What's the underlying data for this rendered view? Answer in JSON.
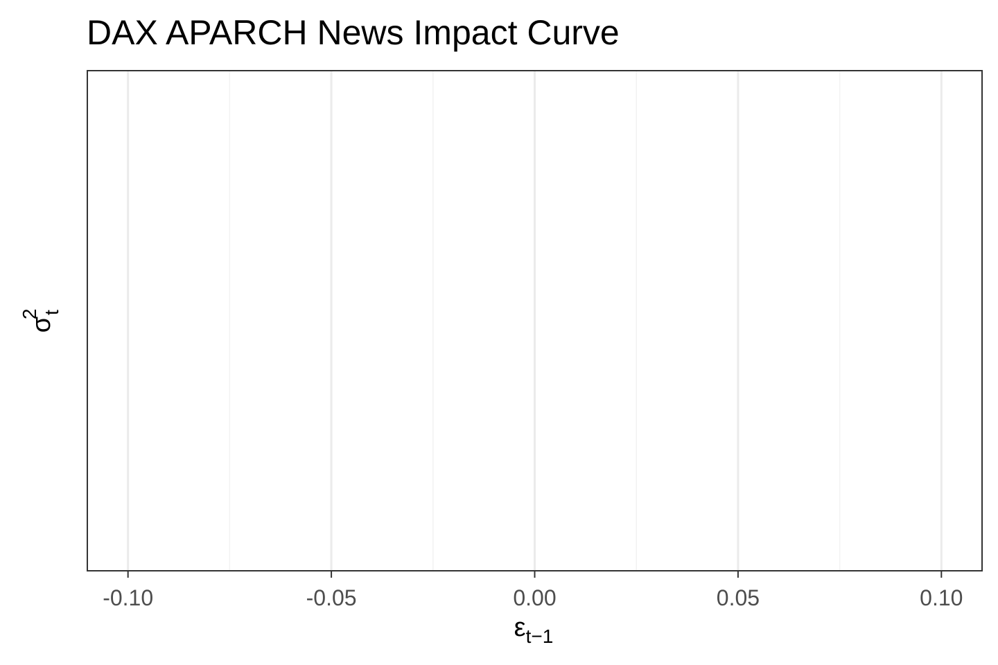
{
  "chart_data": {
    "type": "line",
    "title": "DAX APARCH News Impact Curve",
    "xlabel": {
      "base": "ε",
      "subscript": "t−1"
    },
    "ylabel": {
      "base": "σ",
      "subscript": "t",
      "superscript": "2"
    },
    "xlim": [
      -0.11,
      0.11
    ],
    "x_ticks": [
      -0.1,
      -0.05,
      0.0,
      0.05,
      0.1
    ],
    "x_tick_labels": [
      "-0.10",
      "-0.05",
      "0.00",
      "0.05",
      "0.10"
    ],
    "x_minor_ticks": [
      -0.075,
      -0.025,
      0.025,
      0.075
    ],
    "y_ticks": [],
    "series": [],
    "grid": true,
    "legend": "none",
    "colors": {
      "background": "#ffffff",
      "panel_border": "#333333",
      "grid_major": "#ebebeb",
      "grid_minor": "#f2f2f2",
      "tick_label": "#4d4d4d",
      "text": "#000000"
    }
  }
}
